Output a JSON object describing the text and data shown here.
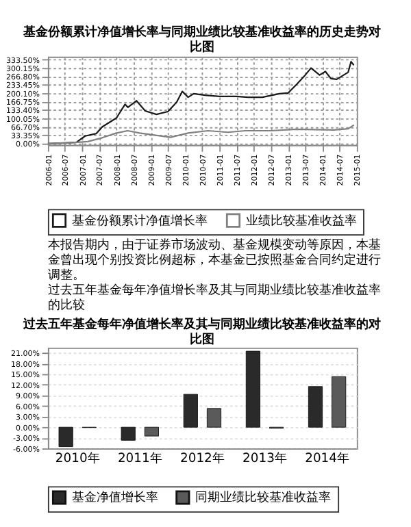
{
  "chart_data": [
    {
      "type": "line",
      "title": "基金份额累计净值增长率与同期业绩比较基准收益率的历史走势对比图",
      "xlim": [
        "2006-01-01",
        "2015-01-01"
      ],
      "xticks": [
        "2006-01",
        "2006-07",
        "2007-01",
        "2007-07",
        "2008-01",
        "2008-07",
        "2009-01",
        "2009-07",
        "2010-01",
        "2010-07",
        "2011-01",
        "2011-07",
        "2012-01",
        "2012-07",
        "2013-01",
        "2013-07",
        "2014-01",
        "2014-07",
        "2015-01"
      ],
      "ylim": [
        -5,
        345
      ],
      "yticks": [
        {
          "value": 0,
          "label": "0.00%"
        },
        {
          "value": 33.35,
          "label": "33.35%"
        },
        {
          "value": 66.7,
          "label": "66.70%"
        },
        {
          "value": 100.05,
          "label": "100.05%"
        },
        {
          "value": 133.4,
          "label": "133.40%"
        },
        {
          "value": 166.75,
          "label": "166.75%"
        },
        {
          "value": 200.1,
          "label": "200.10%"
        },
        {
          "value": 233.45,
          "label": "233.45%"
        },
        {
          "value": 266.8,
          "label": "266.80%"
        },
        {
          "value": 300.15,
          "label": "300.15%"
        },
        {
          "value": 333.5,
          "label": "333.50%"
        }
      ],
      "grid": true,
      "legend": "bottom",
      "series": [
        {
          "name": "基金份额累计净值增长率",
          "color": "#1a1a1a",
          "x": [
            "2006-01",
            "2006-08",
            "2006-11",
            "2007-02",
            "2007-06",
            "2007-08",
            "2008-01",
            "2008-04",
            "2008-05",
            "2008-08",
            "2008-11",
            "2009-03",
            "2009-07",
            "2009-10",
            "2009-12",
            "2010-02",
            "2010-04",
            "2010-08",
            "2011-01",
            "2011-07",
            "2011-11",
            "2012-04",
            "2012-10",
            "2013-01",
            "2013-04",
            "2013-07",
            "2013-09",
            "2013-12",
            "2014-02",
            "2014-04",
            "2014-06",
            "2014-10",
            "2014-11",
            "2014-12"
          ],
          "values": [
            0,
            3,
            5,
            30,
            40,
            66,
            102,
            156,
            144,
            170,
            130,
            116,
            127,
            164,
            207,
            184,
            198,
            192,
            187,
            187,
            184,
            184,
            198,
            201,
            235,
            272,
            300,
            272,
            286,
            258,
            255,
            283,
            325,
            311
          ]
        },
        {
          "name": "业绩比较基准收益率",
          "color": "#808080",
          "x": [
            "2006-01",
            "2006-09",
            "2007-03",
            "2007-08",
            "2008-01",
            "2008-05",
            "2008-09",
            "2009-04",
            "2009-08",
            "2010-02",
            "2010-09",
            "2011-04",
            "2011-10",
            "2012-07",
            "2013-04",
            "2014-05",
            "2014-10",
            "2014-12"
          ],
          "values": [
            0,
            3,
            8,
            23,
            42,
            51,
            42,
            31,
            25,
            42,
            51,
            45,
            51,
            51,
            57,
            54,
            59,
            74
          ]
        }
      ],
      "annotations": [
        "本报告期内，由于证券市场波动、基金规模变动等原因，本基金曾出现个别投资比例超标，本基金已按照基金合同约定进行调整。",
        "过去五年基金每年净值增长率及其与同期业绩比较基准收益率的比较"
      ]
    },
    {
      "type": "bar",
      "title": "过去五年基金每年净值增长率及其与同期业绩比较基准收益率的对比图",
      "categories": [
        "2010年",
        "2011年",
        "2012年",
        "2013年",
        "2014年"
      ],
      "ylim": [
        -6,
        22.5
      ],
      "yticks": [
        {
          "value": -6,
          "label": "-6.00%"
        },
        {
          "value": -3,
          "label": "-3.00%"
        },
        {
          "value": 0,
          "label": "0.00%"
        },
        {
          "value": 3,
          "label": "3.00%"
        },
        {
          "value": 6,
          "label": "6.00%"
        },
        {
          "value": 9,
          "label": "9.00%"
        },
        {
          "value": 12,
          "label": "12.00%"
        },
        {
          "value": 15,
          "label": "15.00%"
        },
        {
          "value": 18,
          "label": "18.00%"
        },
        {
          "value": 21,
          "label": "21.00%"
        }
      ],
      "grid": "y",
      "legend": "bottom",
      "series": [
        {
          "name": "基金净值增长率",
          "color": "#2a2a2a",
          "values": [
            -5.5,
            -3.7,
            9.3,
            21.5,
            11.5
          ]
        },
        {
          "name": "同期业绩比较基准收益率",
          "color": "#5a5a5a",
          "values": [
            -0.1,
            -2.5,
            5.3,
            -0.3,
            14.3
          ]
        }
      ]
    }
  ]
}
